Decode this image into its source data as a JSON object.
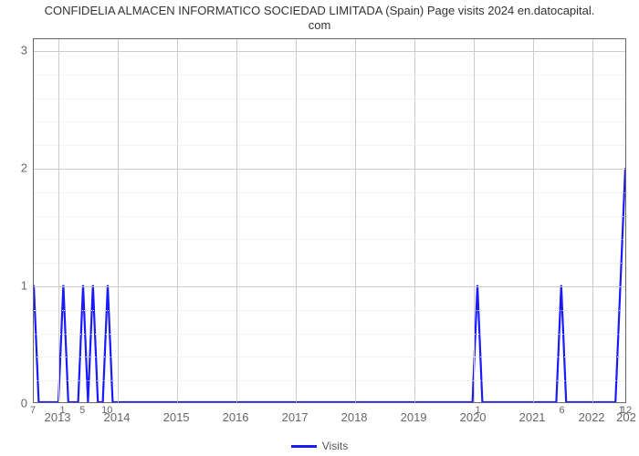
{
  "chart": {
    "type": "line",
    "title_line1": "CONFIDELIA ALMACEN INFORMATICO SOCIEDAD LIMITADA (Spain) Page visits 2024 en.datocapital.",
    "title_line2": "com",
    "title_fontsize": 13,
    "background_color": "#ffffff",
    "plot_border_color": "#666666",
    "grid_color_major": "#cccccc",
    "grid_color_minor": "#e6e6e6",
    "line_color": "#1a1aff",
    "line_width": 2.2,
    "ylim": [
      0,
      3.1
    ],
    "ytick_values": [
      0,
      1,
      2,
      3
    ],
    "ytick_fontsize": 13,
    "ytick_color": "#666666",
    "minor_y_per_major": 5,
    "x_start_index": 7,
    "x_end_index": 127,
    "xtick_major": [
      {
        "idx": 12,
        "label": "2013"
      },
      {
        "idx": 24,
        "label": "2014"
      },
      {
        "idx": 36,
        "label": "2015"
      },
      {
        "idx": 48,
        "label": "2016"
      },
      {
        "idx": 60,
        "label": "2017"
      },
      {
        "idx": 72,
        "label": "2018"
      },
      {
        "idx": 84,
        "label": "2019"
      },
      {
        "idx": 96,
        "label": "2020"
      },
      {
        "idx": 108,
        "label": "2021"
      },
      {
        "idx": 120,
        "label": "2022"
      },
      {
        "idx": 132,
        "label": "202"
      }
    ],
    "xtick_fontsize": 13,
    "xtick_color": "#666666",
    "xlabel": "Visits",
    "xlabel_fontsize": 12,
    "xpoint_labels": [
      {
        "idx": 7,
        "label": "7"
      },
      {
        "idx": 13,
        "label": "1"
      },
      {
        "idx": 17,
        "label": "5"
      },
      {
        "idx": 22,
        "label": "10"
      },
      {
        "idx": 97,
        "label": "1"
      },
      {
        "idx": 114,
        "label": "6"
      },
      {
        "idx": 126,
        "label": "1"
      },
      {
        "idx": 127,
        "label": "12"
      }
    ],
    "series": {
      "name": "Visits",
      "points": [
        {
          "idx": 7,
          "y": 1
        },
        {
          "idx": 8,
          "y": 0
        },
        {
          "idx": 12,
          "y": 0
        },
        {
          "idx": 13,
          "y": 1
        },
        {
          "idx": 14,
          "y": 0
        },
        {
          "idx": 15,
          "y": 0
        },
        {
          "idx": 16,
          "y": 0
        },
        {
          "idx": 17,
          "y": 1
        },
        {
          "idx": 18,
          "y": 0
        },
        {
          "idx": 19,
          "y": 1
        },
        {
          "idx": 20,
          "y": 0
        },
        {
          "idx": 21,
          "y": 0
        },
        {
          "idx": 22,
          "y": 1
        },
        {
          "idx": 23,
          "y": 0
        },
        {
          "idx": 96,
          "y": 0
        },
        {
          "idx": 97,
          "y": 1
        },
        {
          "idx": 98,
          "y": 0
        },
        {
          "idx": 113,
          "y": 0
        },
        {
          "idx": 114,
          "y": 1
        },
        {
          "idx": 115,
          "y": 0
        },
        {
          "idx": 125,
          "y": 0
        },
        {
          "idx": 126,
          "y": 1
        },
        {
          "idx": 127,
          "y": 2
        }
      ]
    },
    "legend": {
      "label": "Visits",
      "swatch_color": "#1a1aff",
      "text_color": "#555555"
    }
  }
}
